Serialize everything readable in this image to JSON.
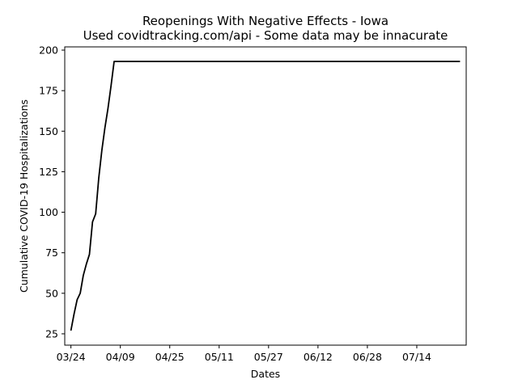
{
  "chart_data": {
    "type": "line",
    "title": "Reopenings With Negative Effects - Iowa",
    "subtitle": "Used covidtracking.com/api - Some data may be innacurate",
    "xlabel": "Dates",
    "ylabel": "Cumulative COVID-19 Hospitalizations",
    "x_tick_labels": [
      "03/24",
      "04/09",
      "04/25",
      "05/11",
      "05/27",
      "06/12",
      "06/28",
      "07/14"
    ],
    "y_ticks": [
      25,
      50,
      75,
      100,
      125,
      150,
      175,
      200
    ],
    "xlim": [
      "2020-03-22",
      "2020-07-30"
    ],
    "ylim": [
      18,
      202
    ],
    "grid": false,
    "line_color": "#000000",
    "series": [
      {
        "x": [
          "2020-03-24",
          "2020-03-25",
          "2020-03-26",
          "2020-03-27",
          "2020-03-28",
          "2020-03-29",
          "2020-03-30",
          "2020-03-31",
          "2020-04-01",
          "2020-04-02",
          "2020-04-03",
          "2020-04-04",
          "2020-04-05",
          "2020-04-06",
          "2020-04-07",
          "2020-04-08",
          "2020-07-28"
        ],
        "values": [
          27,
          37,
          46,
          50,
          61,
          68,
          74,
          94,
          99,
          121,
          138,
          152,
          164,
          178,
          193,
          193,
          193
        ]
      }
    ]
  }
}
